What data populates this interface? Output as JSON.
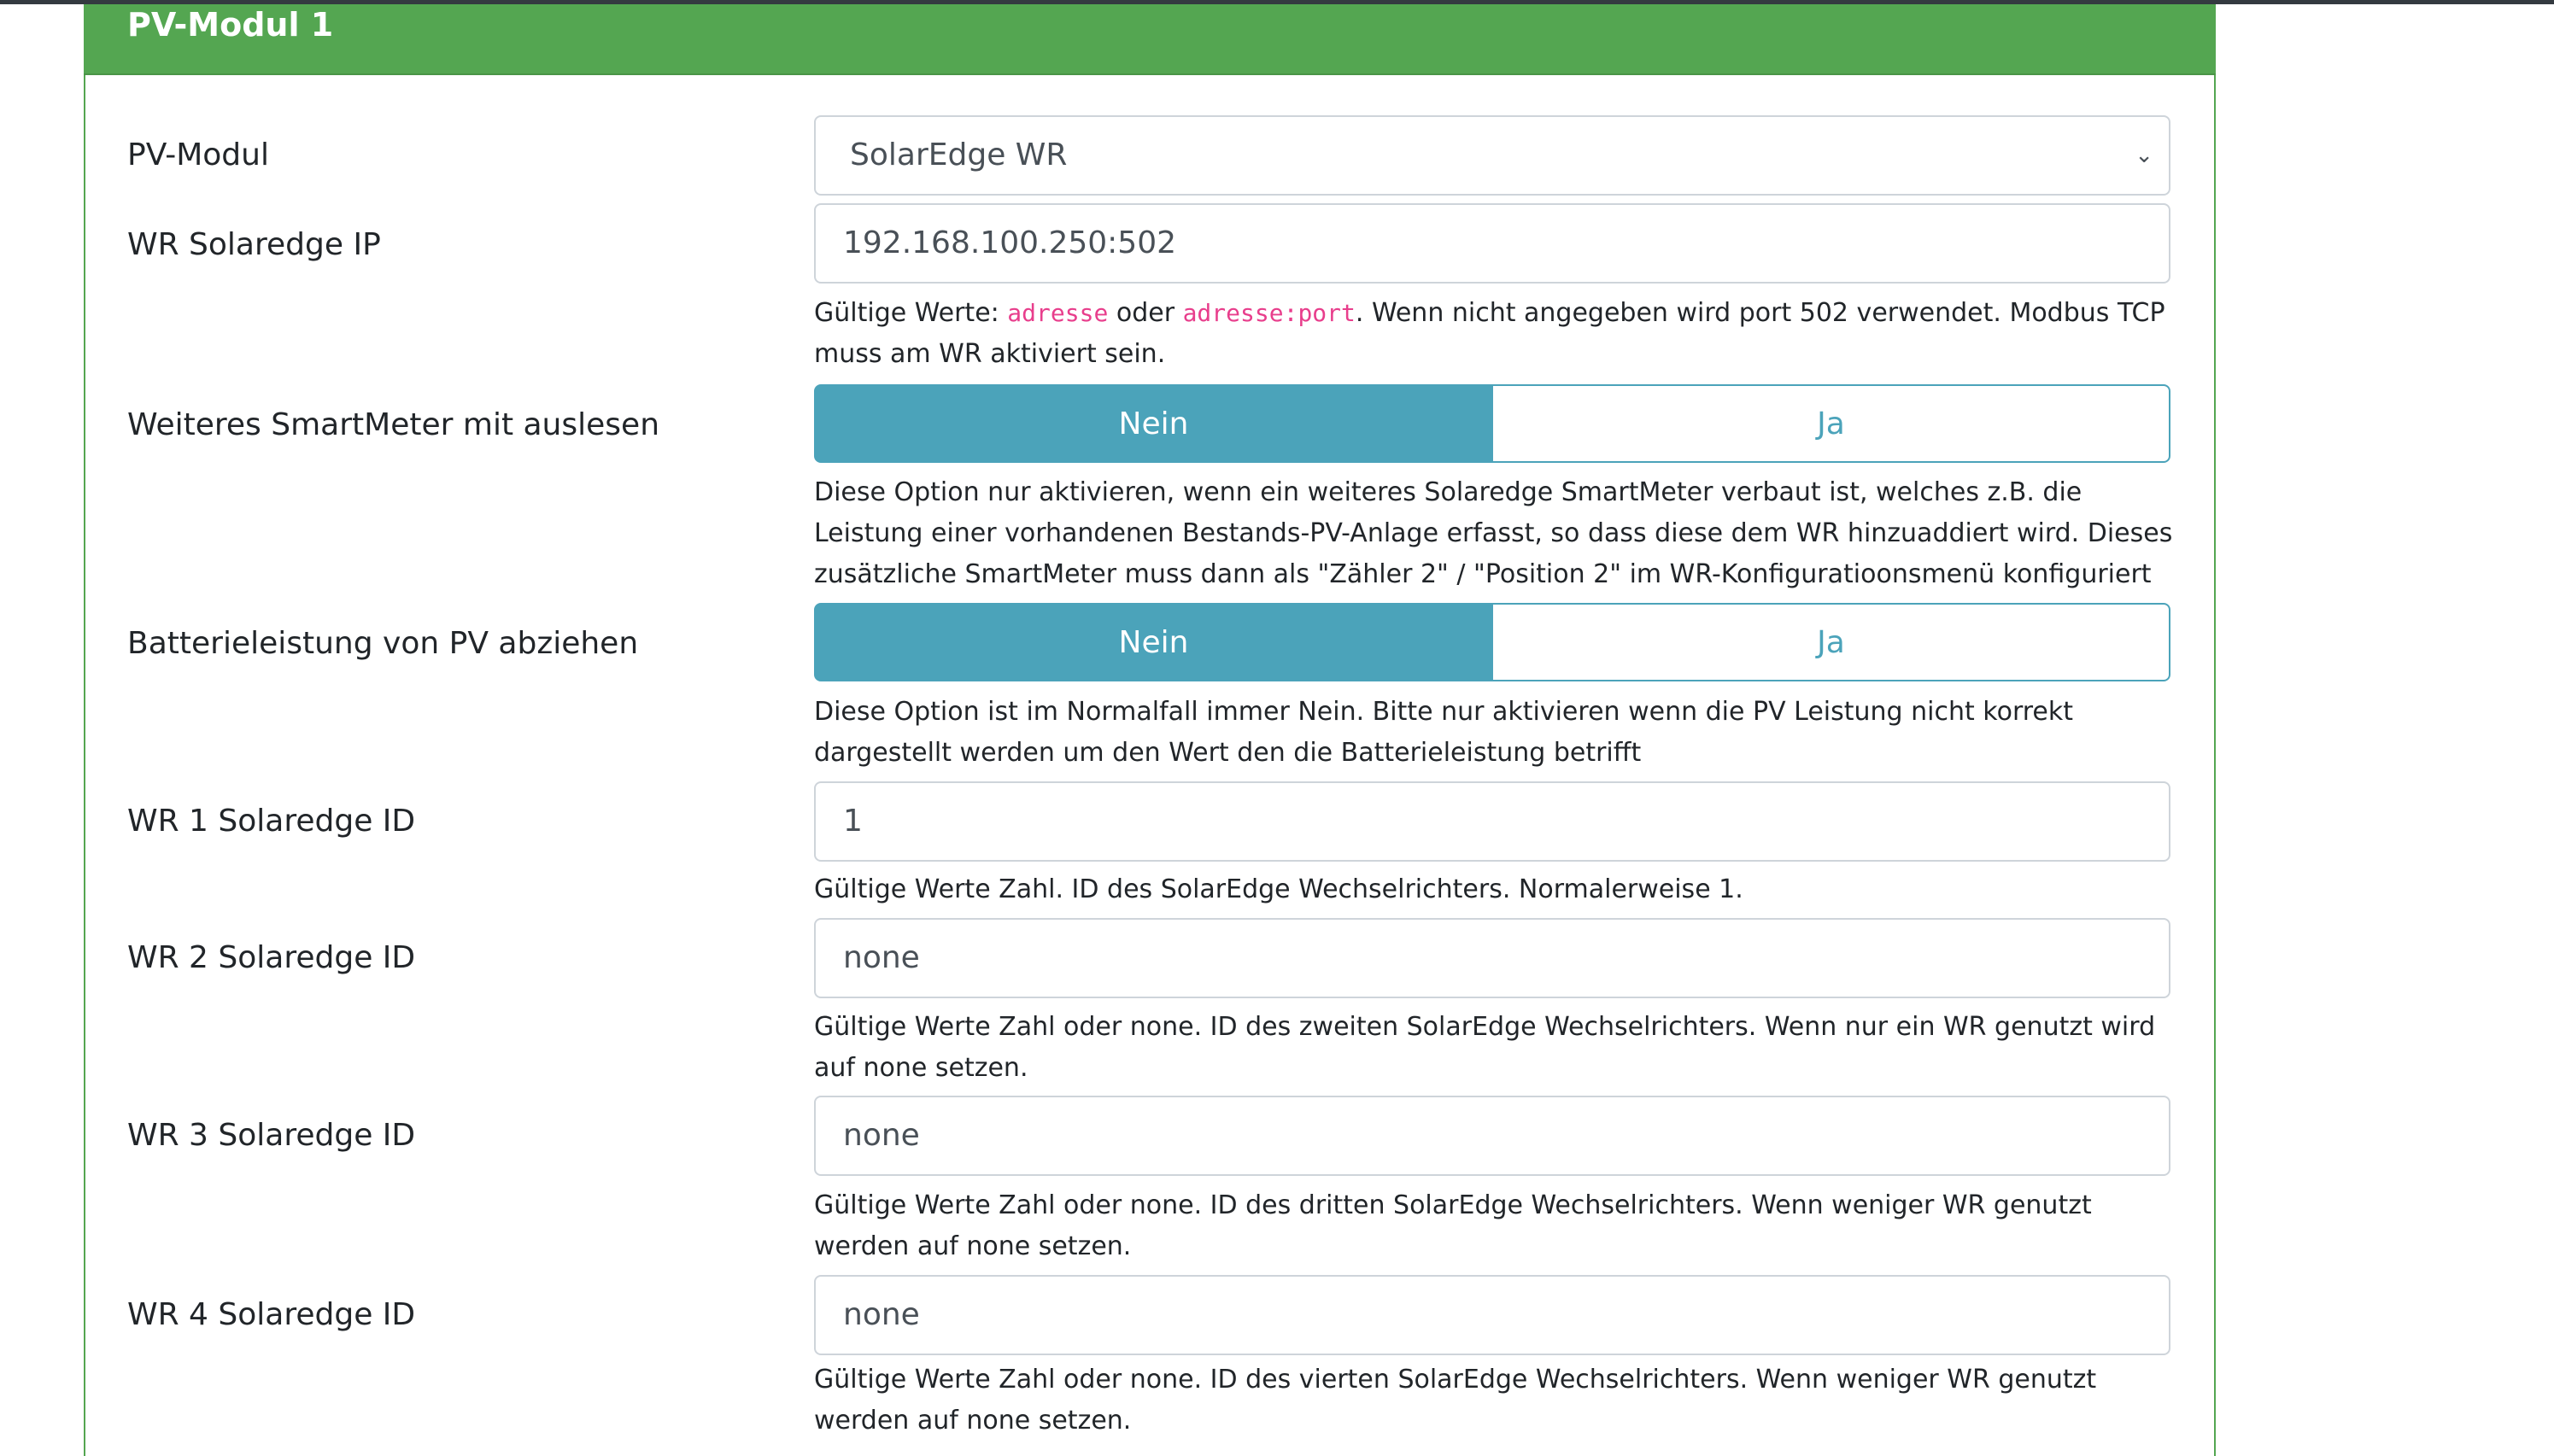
{
  "card": {
    "title": "PV-Modul 1"
  },
  "fields": {
    "pv_modul": {
      "label": "PV-Modul",
      "value": "SolarEdge WR"
    },
    "ip": {
      "label": "WR Solaredge IP",
      "value": "192.168.100.250:502",
      "help_pre": "Gültige Werte: ",
      "help_code1": "adresse",
      "help_mid": " oder ",
      "help_code2": "adresse:port",
      "help_post": ". Wenn nicht angegeben wird port 502 verwendet. Modbus TCP muss am WR aktiviert sein."
    },
    "smartmeter": {
      "label": "Weiteres SmartMeter mit auslesen",
      "options": [
        "Nein",
        "Ja"
      ],
      "selected": "Nein",
      "help": "Diese Option nur aktivieren, wenn ein weiteres Solaredge SmartMeter verbaut ist, welches z.B. die Leistung einer vorhandenen Bestands-PV-Anlage erfasst, so dass diese dem WR hinzuaddiert wird. Dieses zusätzliche SmartMeter muss dann als \"Zähler 2\" / \"Position 2\" im WR-Konfiguratioonsmenü konfiguriert sein."
    },
    "battery": {
      "label": "Batterieleistung von PV abziehen",
      "options": [
        "Nein",
        "Ja"
      ],
      "selected": "Nein",
      "help": "Diese Option ist im Normalfall immer Nein. Bitte nur aktivieren wenn die PV Leistung nicht korrekt dargestellt werden um den Wert den die Batterieleistung betrifft"
    },
    "wr1": {
      "label": "WR 1 Solaredge ID",
      "value": "1",
      "help": "Gültige Werte Zahl. ID des SolarEdge Wechselrichters. Normalerweise 1."
    },
    "wr2": {
      "label": "WR 2 Solaredge ID",
      "value": "none",
      "help": "Gültige Werte Zahl oder none. ID des zweiten SolarEdge Wechselrichters. Wenn nur ein WR genutzt wird auf none setzen."
    },
    "wr3": {
      "label": "WR 3 Solaredge ID",
      "value": "none",
      "help": "Gültige Werte Zahl oder none. ID des dritten SolarEdge Wechselrichters. Wenn weniger WR genutzt werden auf none setzen."
    },
    "wr4": {
      "label": "WR 4 Solaredge ID",
      "value": "none",
      "help": "Gültige Werte Zahl oder none. ID des vierten SolarEdge Wechselrichters. Wenn weniger WR genutzt werden auf none setzen."
    }
  },
  "colors": {
    "header": "#54a651",
    "toggle_active": "#4ba3ba",
    "code": "#e83e8c"
  },
  "icons": {
    "select": "chevron-down-icon"
  }
}
